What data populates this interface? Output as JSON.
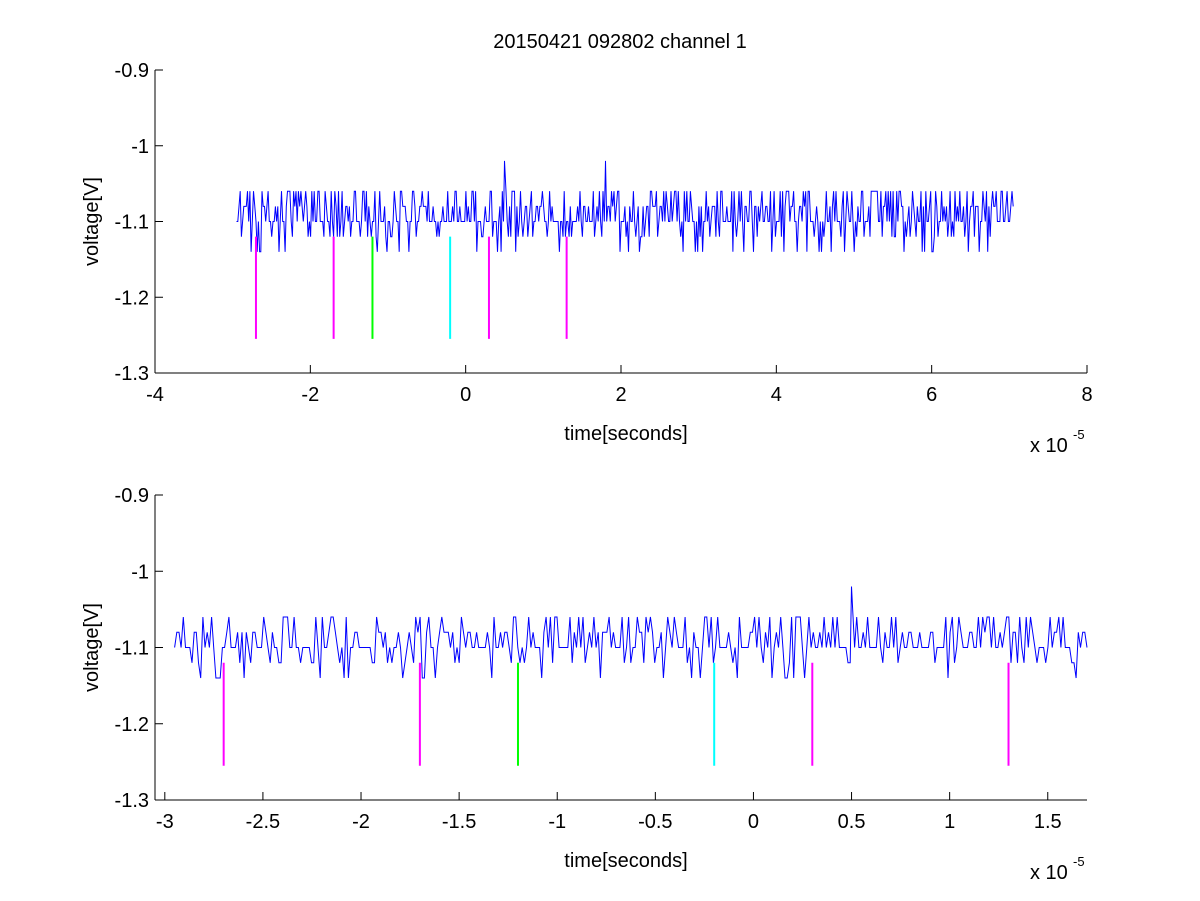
{
  "figure_title": "20150421 092802 channel 1",
  "colors": {
    "signal": "#0000ff",
    "magenta": "#ff00ff",
    "green": "#00ff00",
    "cyan": "#00ffff",
    "axes": "#000000",
    "background": "#ffffff"
  },
  "chart_data": [
    {
      "type": "line",
      "title": "20150421 092802 channel 1",
      "xlabel": "time[seconds]",
      "ylabel": "voltage[V]",
      "x_exponent_label": "x 10",
      "x_exponent": "-5",
      "xlim": [
        -4,
        8
      ],
      "ylim": [
        -1.3,
        -0.9
      ],
      "xticks": [
        -4,
        -2,
        0,
        2,
        4,
        6,
        8
      ],
      "xtick_labels": [
        "-4",
        "-2",
        "0",
        "2",
        "4",
        "6",
        "8"
      ],
      "yticks": [
        -1.3,
        -1.2,
        -1.1,
        -1.0,
        -0.9
      ],
      "ytick_labels": [
        "-1.3",
        "-1.2",
        "-1.1",
        "-1",
        "-0.9"
      ],
      "grid": false,
      "series": [
        {
          "color": "#0000ff",
          "x_range": [
            -2.95,
            7.05
          ],
          "baseline": -1.1,
          "levels": [
            -1.14,
            -1.12,
            -1.1,
            -1.08,
            -1.06
          ],
          "spikes": [
            {
              "x": 0.5,
              "y": -1.02
            },
            {
              "x": 1.8,
              "y": -1.02
            }
          ],
          "x_units": "x 10^-5 seconds"
        }
      ],
      "markers": [
        {
          "x": -2.7,
          "y_range": [
            -1.255,
            -1.12
          ],
          "color": "magenta"
        },
        {
          "x": -1.7,
          "y_range": [
            -1.255,
            -1.12
          ],
          "color": "magenta"
        },
        {
          "x": -1.2,
          "y_range": [
            -1.255,
            -1.12
          ],
          "color": "green"
        },
        {
          "x": -0.2,
          "y_range": [
            -1.255,
            -1.12
          ],
          "color": "cyan"
        },
        {
          "x": 0.3,
          "y_range": [
            -1.255,
            -1.12
          ],
          "color": "magenta"
        },
        {
          "x": 1.3,
          "y_range": [
            -1.255,
            -1.12
          ],
          "color": "magenta"
        }
      ]
    },
    {
      "type": "line",
      "title": "",
      "xlabel": "time[seconds]",
      "ylabel": "voltage[V]",
      "x_exponent_label": "x 10",
      "x_exponent": "-5",
      "xlim": [
        -3.05,
        1.7
      ],
      "ylim": [
        -1.3,
        -0.9
      ],
      "xticks": [
        -3,
        -2.5,
        -2,
        -1.5,
        -1,
        -0.5,
        0,
        0.5,
        1,
        1.5
      ],
      "xtick_labels": [
        "-3",
        "-2.5",
        "-2",
        "-1.5",
        "-1",
        "-0.5",
        "0",
        "0.5",
        "1",
        "1.5"
      ],
      "yticks": [
        -1.3,
        -1.2,
        -1.1,
        -1.0,
        -0.9
      ],
      "ytick_labels": [
        "-1.3",
        "-1.2",
        "-1.1",
        "-1",
        "-0.9"
      ],
      "grid": false,
      "series": [
        {
          "color": "#0000ff",
          "x_range": [
            -2.95,
            1.7
          ],
          "baseline": -1.1,
          "levels": [
            -1.14,
            -1.12,
            -1.1,
            -1.08,
            -1.06
          ],
          "spikes": [
            {
              "x": 0.5,
              "y": -1.02
            }
          ],
          "x_units": "x 10^-5 seconds"
        }
      ],
      "markers": [
        {
          "x": -2.7,
          "y_range": [
            -1.255,
            -1.12
          ],
          "color": "magenta"
        },
        {
          "x": -1.7,
          "y_range": [
            -1.255,
            -1.12
          ],
          "color": "magenta"
        },
        {
          "x": -1.2,
          "y_range": [
            -1.255,
            -1.12
          ],
          "color": "green"
        },
        {
          "x": -0.2,
          "y_range": [
            -1.255,
            -1.12
          ],
          "color": "cyan"
        },
        {
          "x": 0.3,
          "y_range": [
            -1.255,
            -1.12
          ],
          "color": "magenta"
        },
        {
          "x": 1.3,
          "y_range": [
            -1.255,
            -1.12
          ],
          "color": "magenta"
        }
      ]
    }
  ]
}
